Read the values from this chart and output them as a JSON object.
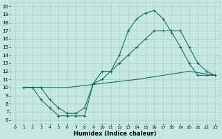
{
  "title": "",
  "xlabel": "Humidex (Indice chaleur)",
  "ylabel": "",
  "xlim": [
    -0.5,
    23.5
  ],
  "ylim": [
    5.5,
    20.5
  ],
  "xticks": [
    0,
    1,
    2,
    3,
    4,
    5,
    6,
    7,
    8,
    9,
    10,
    11,
    12,
    13,
    14,
    15,
    16,
    17,
    18,
    19,
    20,
    21,
    22,
    23
  ],
  "yticks": [
    6,
    7,
    8,
    9,
    10,
    11,
    12,
    13,
    14,
    15,
    16,
    17,
    18,
    19,
    20
  ],
  "bg_color": "#c6e8e2",
  "grid_color": "#aacfc8",
  "line_color": "#1a6b60",
  "line1_x": [
    1,
    2,
    3,
    4,
    5,
    6,
    7,
    8,
    9,
    10,
    11,
    12,
    13,
    14,
    15,
    16,
    17,
    18,
    19,
    20,
    21,
    22,
    23
  ],
  "line1_y": [
    10.0,
    10.0,
    8.5,
    7.5,
    6.5,
    6.5,
    6.5,
    6.5,
    10.5,
    12.0,
    12.0,
    14.0,
    17.0,
    18.5,
    19.2,
    19.5,
    18.5,
    16.8,
    15.0,
    13.0,
    11.5,
    11.5,
    11.5
  ],
  "line2_x": [
    1,
    2,
    3,
    4,
    5,
    6,
    7,
    8,
    9,
    10,
    11,
    12,
    13,
    14,
    15,
    16,
    17,
    18,
    19,
    20,
    21,
    22,
    23
  ],
  "line2_y": [
    10.0,
    10.0,
    10.0,
    8.5,
    7.5,
    6.8,
    6.8,
    7.5,
    10.5,
    11.0,
    12.0,
    13.0,
    14.0,
    15.0,
    16.0,
    17.0,
    17.0,
    17.0,
    17.0,
    15.0,
    13.0,
    12.0,
    11.5
  ],
  "line3_x": [
    1,
    3,
    6,
    10,
    14,
    17,
    20,
    23
  ],
  "line3_y": [
    10.0,
    10.0,
    10.0,
    10.5,
    11.0,
    11.5,
    12.0,
    11.5
  ]
}
